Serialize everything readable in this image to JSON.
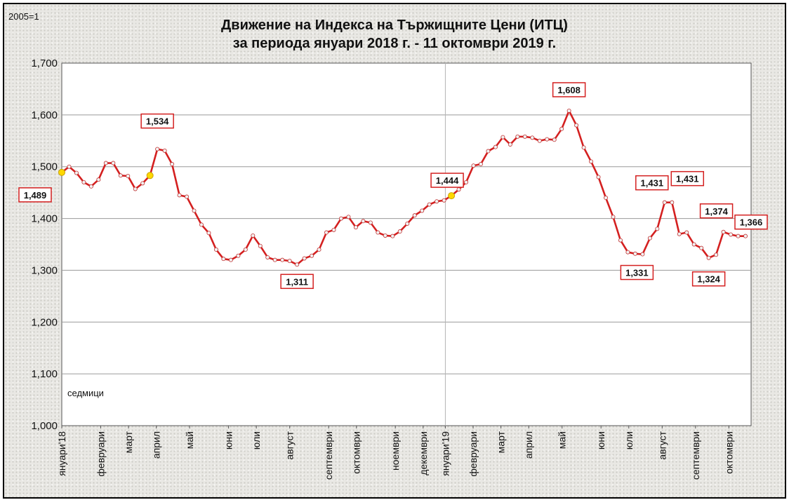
{
  "chart_data": {
    "type": "line",
    "title_lines": [
      "Движение на Индекса на Тържищните Цени (ИТЦ)",
      "за периода януари 2018 г. -  11 октомври 2019 г."
    ],
    "base_note": "2005=1",
    "units_note": "седмици",
    "ylim": [
      1.0,
      1.7
    ],
    "y_ticks": [
      "1,000",
      "1,100",
      "1,200",
      "1,300",
      "1,400",
      "1,500",
      "1,600",
      "1,700"
    ],
    "grid": true,
    "colors": {
      "line": "#d42020",
      "point": "#f2f2f2",
      "highlight": "#ffd800",
      "box_border": "#d42020",
      "grid": "#9a9a9a"
    },
    "x_labels": [
      "януари'18",
      "февруари",
      "март",
      "април",
      "май",
      "юни",
      "юли",
      "август",
      "септември",
      "октомври",
      "ноември",
      "декември",
      "януари'19",
      "февруари",
      "март",
      "април",
      "май",
      "юни",
      "юли",
      "август",
      "септември",
      "октомври"
    ],
    "x_label_week": [
      0,
      7,
      12,
      17,
      23,
      30,
      35,
      41,
      48,
      53,
      60,
      65,
      69,
      74,
      79,
      84,
      90,
      97,
      102,
      108,
      114,
      120
    ],
    "week_count": 124,
    "series": [
      {
        "values": [
          1.489,
          1.5,
          1.488,
          1.47,
          1.462,
          1.475,
          1.507,
          1.507,
          1.483,
          1.482,
          1.457,
          1.468,
          1.483,
          1.534,
          1.531,
          1.505,
          1.445,
          1.442,
          1.415,
          1.388,
          1.372,
          1.34,
          1.322,
          1.32,
          1.328,
          1.34,
          1.367,
          1.347,
          1.325,
          1.32,
          1.32,
          1.318,
          1.311,
          1.323,
          1.328,
          1.34,
          1.373,
          1.378,
          1.4,
          1.403,
          1.383,
          1.395,
          1.392,
          1.373,
          1.367,
          1.366,
          1.375,
          1.39,
          1.406,
          1.415,
          1.427,
          1.433,
          1.435,
          1.444,
          1.456,
          1.47,
          1.502,
          1.505,
          1.53,
          1.538,
          1.557,
          1.543,
          1.558,
          1.558,
          1.556,
          1.55,
          1.553,
          1.552,
          1.573,
          1.608,
          1.58,
          1.537,
          1.51,
          1.48,
          1.44,
          1.403,
          1.358,
          1.335,
          1.332,
          1.331,
          1.362,
          1.38,
          1.431,
          1.431,
          1.37,
          1.373,
          1.35,
          1.343,
          1.324,
          1.33,
          1.374,
          1.369,
          1.366,
          1.366
        ],
        "week_index": [
          0,
          1,
          2,
          3,
          4,
          5,
          6,
          7,
          8,
          9,
          10,
          11,
          12,
          13,
          14,
          15,
          16,
          17,
          18,
          19,
          20,
          21,
          22,
          23,
          24,
          25,
          26,
          27,
          28,
          29,
          30,
          31,
          32,
          33,
          34,
          35,
          36,
          37,
          38,
          39,
          40,
          41,
          42,
          43,
          44,
          45,
          46,
          47,
          48,
          49,
          50,
          51,
          52,
          53,
          54,
          55,
          56,
          57,
          58,
          59,
          60,
          61,
          62,
          63,
          64,
          65,
          66,
          67,
          68,
          69,
          70,
          71,
          72,
          73,
          74,
          75,
          76,
          77,
          78,
          79,
          80,
          81,
          82,
          83,
          84,
          85,
          86,
          87,
          88,
          89,
          90,
          91,
          92,
          93
        ]
      }
    ],
    "highlight_points": [
      0,
      12,
      53
    ],
    "annotations": [
      {
        "label": "1,489",
        "point": 0
      },
      {
        "label": "1,534",
        "point": 13
      },
      {
        "label": "1,311",
        "point": 32
      },
      {
        "label": "1,444",
        "point": 53
      },
      {
        "label": "1,608",
        "point": 69
      },
      {
        "label": "1,431",
        "point": 82
      },
      {
        "label": "1,331",
        "point": 79
      },
      {
        "label": "1,431",
        "point": 83
      },
      {
        "label": "1,374",
        "point": 90
      },
      {
        "label": "1,324",
        "point": 88
      },
      {
        "label": "1,366",
        "point": 93
      }
    ]
  }
}
